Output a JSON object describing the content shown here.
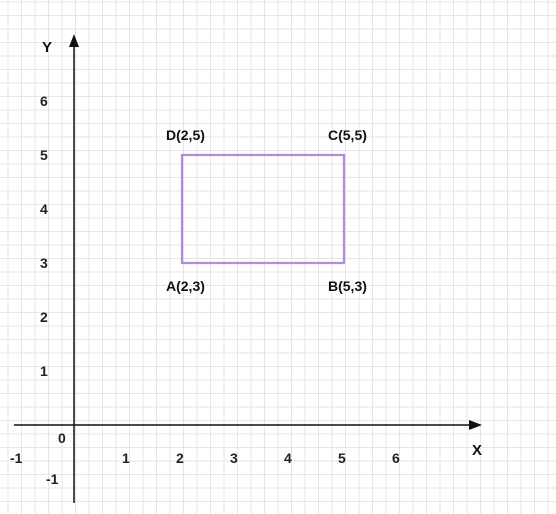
{
  "axes": {
    "x_label": "X",
    "y_label": "Y",
    "origin_label": "0",
    "x_ticks": [
      "-1",
      "1",
      "2",
      "3",
      "4",
      "5",
      "6"
    ],
    "y_ticks": [
      "6",
      "5",
      "4",
      "3",
      "2",
      "1",
      "-1"
    ]
  },
  "rectangle": {
    "stroke_color": "#b48cd6",
    "points": [
      {
        "label": "A(2,3)",
        "x": 2,
        "y": 3
      },
      {
        "label": "B(5,3)",
        "x": 5,
        "y": 3
      },
      {
        "label": "C(5,5)",
        "x": 5,
        "y": 5
      },
      {
        "label": "D(2,5)",
        "x": 2,
        "y": 5
      }
    ]
  },
  "colors": {
    "grid": "#e6e6e6",
    "axis": "#111111"
  }
}
